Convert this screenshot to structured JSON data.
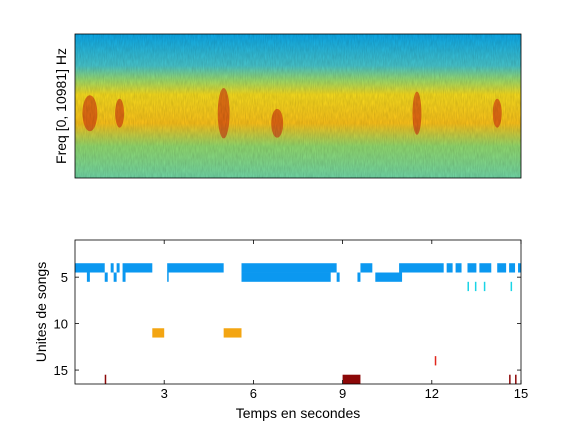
{
  "colors": {
    "spectro_low": "#0aa6e6",
    "spectro_mid": "#7dd87a",
    "spectro_high": "#f7d21c",
    "spectro_peak": "#c81e0c"
  },
  "chart_data": [
    {
      "type": "heatmap",
      "ylabel": "Freq [0, 10981] Hz",
      "xlim": [
        0,
        15
      ],
      "grid": false,
      "bands": [
        {
          "from": 0.0,
          "to": 0.25,
          "level": "low"
        },
        {
          "from": 0.25,
          "to": 0.38,
          "level": "mid"
        },
        {
          "from": 0.38,
          "to": 0.75,
          "level": "high"
        },
        {
          "from": 0.75,
          "to": 1.0,
          "level": "mid"
        }
      ],
      "hotspots": [
        {
          "t": 0.5,
          "f": 0.55,
          "w": 0.5,
          "h": 0.25
        },
        {
          "t": 1.5,
          "f": 0.55,
          "w": 0.3,
          "h": 0.2
        },
        {
          "t": 5.0,
          "f": 0.55,
          "w": 0.4,
          "h": 0.35
        },
        {
          "t": 6.8,
          "f": 0.62,
          "w": 0.4,
          "h": 0.2
        },
        {
          "t": 11.5,
          "f": 0.55,
          "w": 0.3,
          "h": 0.3
        },
        {
          "t": 14.2,
          "f": 0.55,
          "w": 0.3,
          "h": 0.2
        }
      ]
    },
    {
      "type": "scatter",
      "xlabel": "Temps en secondes",
      "ylabel": "Unites de songs",
      "xlim": [
        0,
        15
      ],
      "ylim": [
        1,
        16.5
      ],
      "xticks": [
        3,
        6,
        9,
        12,
        15
      ],
      "yticks": [
        5,
        10,
        15
      ],
      "series": [
        {
          "unit": 4,
          "color": "#0b98f0",
          "segments": [
            [
              0,
              1.0
            ],
            [
              1.2,
              1.3
            ],
            [
              1.4,
              1.5
            ],
            [
              1.6,
              2.6
            ],
            [
              3.1,
              5.0
            ],
            [
              5.6,
              8.8
            ],
            [
              9.6,
              10.0
            ],
            [
              10.9,
              12.4
            ],
            [
              12.5,
              12.7
            ],
            [
              12.8,
              13.0
            ],
            [
              13.2,
              13.5
            ],
            [
              13.6,
              14.0
            ],
            [
              14.2,
              14.5
            ],
            [
              14.6,
              14.8
            ],
            [
              14.9,
              15.0
            ]
          ]
        },
        {
          "unit": 5,
          "color": "#0b98f0",
          "segments": [
            [
              1.0,
              1.1
            ],
            [
              1.6,
              1.7
            ],
            [
              5.6,
              8.6
            ],
            [
              9.5,
              9.6
            ],
            [
              10.1,
              11.0
            ]
          ]
        },
        {
          "unit": 5,
          "color": "#0b98f0",
          "segments": [
            [
              0.4,
              0.5
            ],
            [
              1.3,
              1.4
            ],
            [
              3.1,
              3.15
            ],
            [
              8.8,
              8.9
            ]
          ]
        },
        {
          "unit": 6,
          "color": "#19d4e6",
          "segments": [
            [
              13.2,
              13.25
            ],
            [
              13.45,
              13.5
            ],
            [
              13.75,
              13.8
            ],
            [
              14.65,
              14.7
            ]
          ]
        },
        {
          "unit": 11,
          "color": "#f3a512",
          "segments": [
            [
              2.6,
              3.0
            ],
            [
              5.0,
              5.6
            ]
          ]
        },
        {
          "unit": 14,
          "color": "#e1261c",
          "segments": [
            [
              12.1,
              12.15
            ]
          ]
        },
        {
          "unit": 16,
          "color": "#8c0808",
          "segments": [
            [
              1.0,
              1.05
            ],
            [
              9.0,
              9.6
            ],
            [
              14.6,
              14.65
            ],
            [
              14.8,
              14.85
            ]
          ]
        }
      ]
    }
  ]
}
